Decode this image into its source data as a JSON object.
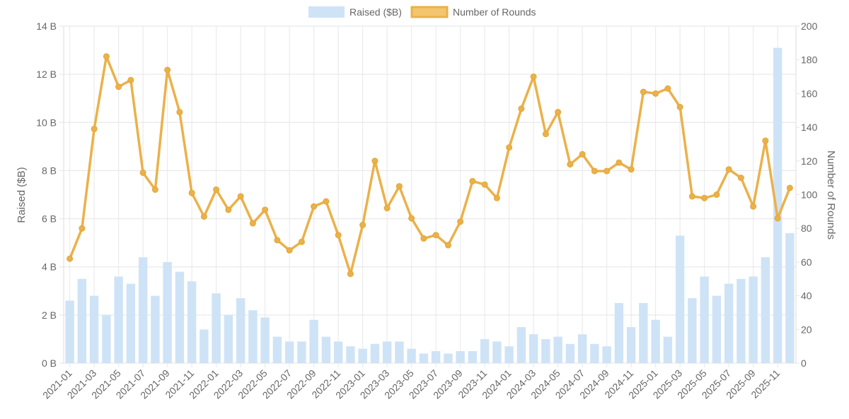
{
  "chart_data": {
    "type": "bar",
    "categories": [
      "2021-01",
      "2021-02",
      "2021-03",
      "2021-04",
      "2021-05",
      "2021-06",
      "2021-07",
      "2021-08",
      "2021-09",
      "2021-10",
      "2021-11",
      "2021-12",
      "2022-01",
      "2022-02",
      "2022-03",
      "2022-04",
      "2022-05",
      "2022-06",
      "2022-07",
      "2022-08",
      "2022-09",
      "2022-10",
      "2022-11",
      "2022-12",
      "2023-01",
      "2023-02",
      "2023-03",
      "2023-04",
      "2023-05",
      "2023-06",
      "2023-07",
      "2023-08",
      "2023-09",
      "2023-10",
      "2023-11",
      "2023-12",
      "2024-01",
      "2024-02",
      "2024-03",
      "2024-04",
      "2024-05",
      "2024-06",
      "2024-07",
      "2024-08",
      "2024-09",
      "2024-10",
      "2024-11",
      "2024-12",
      "2025-01",
      "2025-02",
      "2025-03",
      "2025-04",
      "2025-05",
      "2025-06",
      "2025-07",
      "2025-08",
      "2025-09",
      "2025-10",
      "2025-11",
      "2025-12"
    ],
    "x_tick_labels": [
      "2021-01",
      "2021-03",
      "2021-05",
      "2021-07",
      "2021-09",
      "2021-11",
      "2022-01",
      "2022-03",
      "2022-05",
      "2022-07",
      "2022-09",
      "2022-11",
      "2023-01",
      "2023-03",
      "2023-05",
      "2023-07",
      "2023-09",
      "2023-11",
      "2024-01",
      "2024-03",
      "2024-05",
      "2024-07",
      "2024-09",
      "2024-11",
      "2025-01",
      "2025-03",
      "2025-05",
      "2025-07",
      "2025-09",
      "2025-11"
    ],
    "series": [
      {
        "name": "Raised ($B)",
        "type": "bar",
        "axis": "left",
        "color": "#cfe3f7",
        "values": [
          2.6,
          3.5,
          2.8,
          2.0,
          3.6,
          3.3,
          4.4,
          2.8,
          4.2,
          3.8,
          3.4,
          1.4,
          2.9,
          2.0,
          2.7,
          2.2,
          1.9,
          1.1,
          0.9,
          0.9,
          1.8,
          1.1,
          0.9,
          0.7,
          0.6,
          0.8,
          0.9,
          0.9,
          0.6,
          0.4,
          0.5,
          0.4,
          0.5,
          0.5,
          1.0,
          0.9,
          0.7,
          1.5,
          1.2,
          1.0,
          1.1,
          0.8,
          1.2,
          0.8,
          0.7,
          2.5,
          1.5,
          2.5,
          1.8,
          1.1,
          5.3,
          2.7,
          3.6,
          2.8,
          3.3,
          3.5,
          3.6,
          4.4,
          13.1,
          5.4
        ]
      },
      {
        "name": "Number of Rounds",
        "type": "line",
        "axis": "right",
        "color": "#ebb149",
        "values": [
          62,
          80,
          139,
          182,
          164,
          168,
          113,
          103,
          174,
          149,
          101,
          87,
          103,
          91,
          99,
          83,
          91,
          73,
          67,
          72,
          93,
          96,
          76,
          53,
          82,
          120,
          92,
          105,
          86,
          74,
          76,
          70,
          84,
          108,
          106,
          98,
          128,
          151,
          170,
          136,
          149,
          118,
          124,
          114,
          114,
          119,
          115,
          161,
          160,
          163,
          152,
          99,
          98,
          100,
          115,
          110,
          93,
          132,
          86,
          104
        ]
      }
    ],
    "y_left": {
      "label": "Raised ($B)",
      "min": 0,
      "max": 14,
      "step": 2,
      "tick_suffix": " B"
    },
    "y_right": {
      "label": "Number of Rounds",
      "min": 0,
      "max": 200,
      "step": 20
    },
    "legend": {
      "position": "top-center"
    },
    "grid": true
  }
}
